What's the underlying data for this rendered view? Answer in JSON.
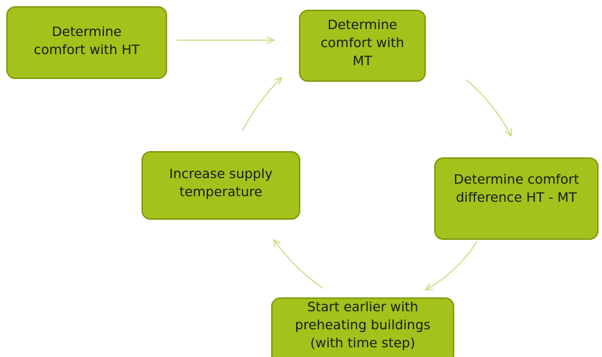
{
  "nodes": [
    {
      "lines": [
        "Determine",
        "comfort with HT"
      ]
    },
    {
      "lines": [
        "Determine",
        "comfort with",
        "MT"
      ]
    },
    {
      "lines": [
        "Determine comfort",
        "difference HT - MT"
      ]
    },
    {
      "lines": [
        "Start earlier with",
        "preheating buildings",
        "(with time step)"
      ]
    },
    {
      "lines": [
        "Increase supply",
        "temperature"
      ]
    }
  ]
}
